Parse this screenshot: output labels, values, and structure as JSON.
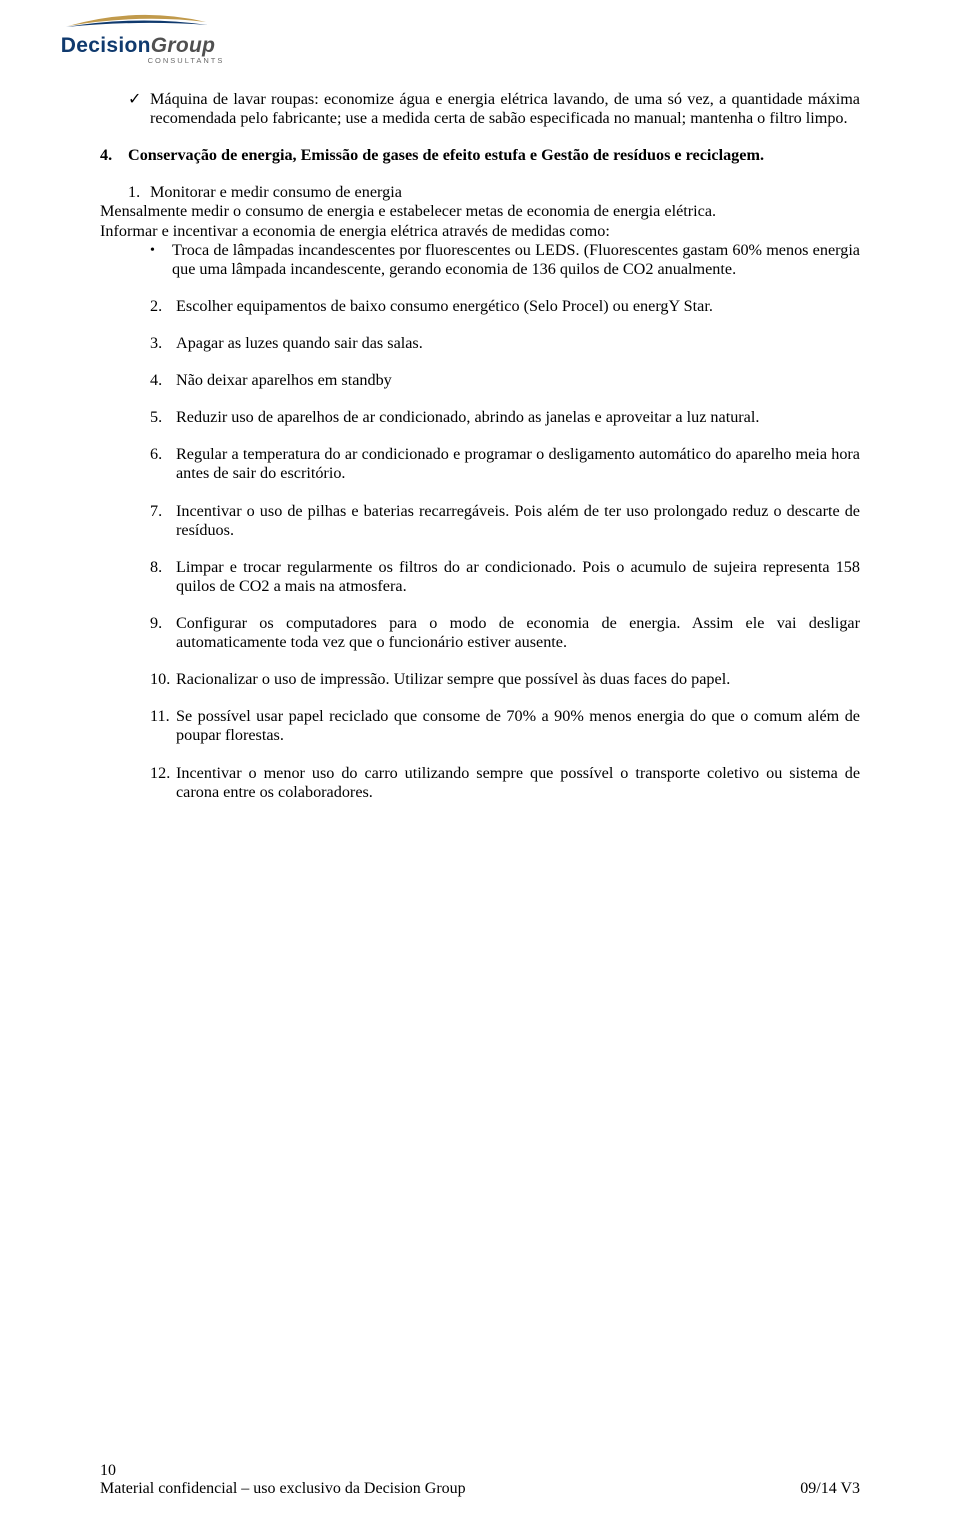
{
  "logo": {
    "brand_part1": "Decision",
    "brand_part2": "Group",
    "subtitle": "CONSULTANTS",
    "color_navy": "#103a6e",
    "color_gold": "#c19a4b",
    "color_grey": "#505050"
  },
  "check_item": "Máquina de lavar roupas: economize água e energia elétrica lavando, de uma só vez, a quantidade máxima recomendada pelo fabricante; use a medida certa de sabão especificada no manual; mantenha o filtro limpo.",
  "section_heading_num": "4.",
  "section_heading": "Conservação de energia, Emissão de gases de efeito estufa e Gestão de resíduos e reciclagem.",
  "sub1_num": "1.",
  "sub1_title": "Monitorar e medir consumo de energia",
  "sub1_body1": "Mensalmente medir o consumo de energia e estabelecer metas de economia de energia elétrica.",
  "sub1_body2": "Informar e incentivar a economia de energia elétrica através de medidas como:",
  "bullet1": "Troca de lâmpadas incandescentes por fluorescentes ou LEDS. (Fluorescentes gastam 60% menos energia que uma lâmpada incandescente, gerando economia de 136 quilos de CO2 anualmente.",
  "items": [
    {
      "n": "2.",
      "t": "Escolher equipamentos de baixo consumo energético (Selo Procel) ou energY Star."
    },
    {
      "n": "3.",
      "t": "Apagar as luzes quando sair das salas."
    },
    {
      "n": "4.",
      "t": "Não deixar aparelhos em standby"
    },
    {
      "n": "5.",
      "t": "Reduzir uso de aparelhos de ar condicionado, abrindo as janelas e aproveitar a luz natural."
    },
    {
      "n": "6.",
      "t": "Regular a temperatura do ar condicionado e programar o desligamento automático do aparelho meia hora antes de sair do escritório."
    },
    {
      "n": "7.",
      "t": "Incentivar o uso de pilhas e baterias recarregáveis. Pois além de ter uso prolongado reduz o descarte de resíduos."
    },
    {
      "n": "8.",
      "t": "Limpar e trocar regularmente os filtros do ar condicionado. Pois o acumulo de sujeira representa 158 quilos de CO2 a mais na atmosfera."
    },
    {
      "n": "9.",
      "t": "Configurar os computadores para o modo de economia de energia. Assim ele vai desligar automaticamente toda vez que o funcionário estiver ausente."
    },
    {
      "n": "10.",
      "t": "Racionalizar o uso de impressão. Utilizar sempre que possível às duas faces do papel."
    },
    {
      "n": "11.",
      "t": "Se possível usar papel reciclado que consome de 70% a 90% menos energia do que o comum além de poupar florestas."
    },
    {
      "n": "12.",
      "t": "Incentivar o menor uso do carro utilizando sempre que possível o transporte coletivo ou sistema de carona entre os colaboradores."
    }
  ],
  "footer": {
    "page": "10",
    "confidential": "Material confidencial – uso exclusivo da Decision Group",
    "version": "09/14  V3"
  }
}
